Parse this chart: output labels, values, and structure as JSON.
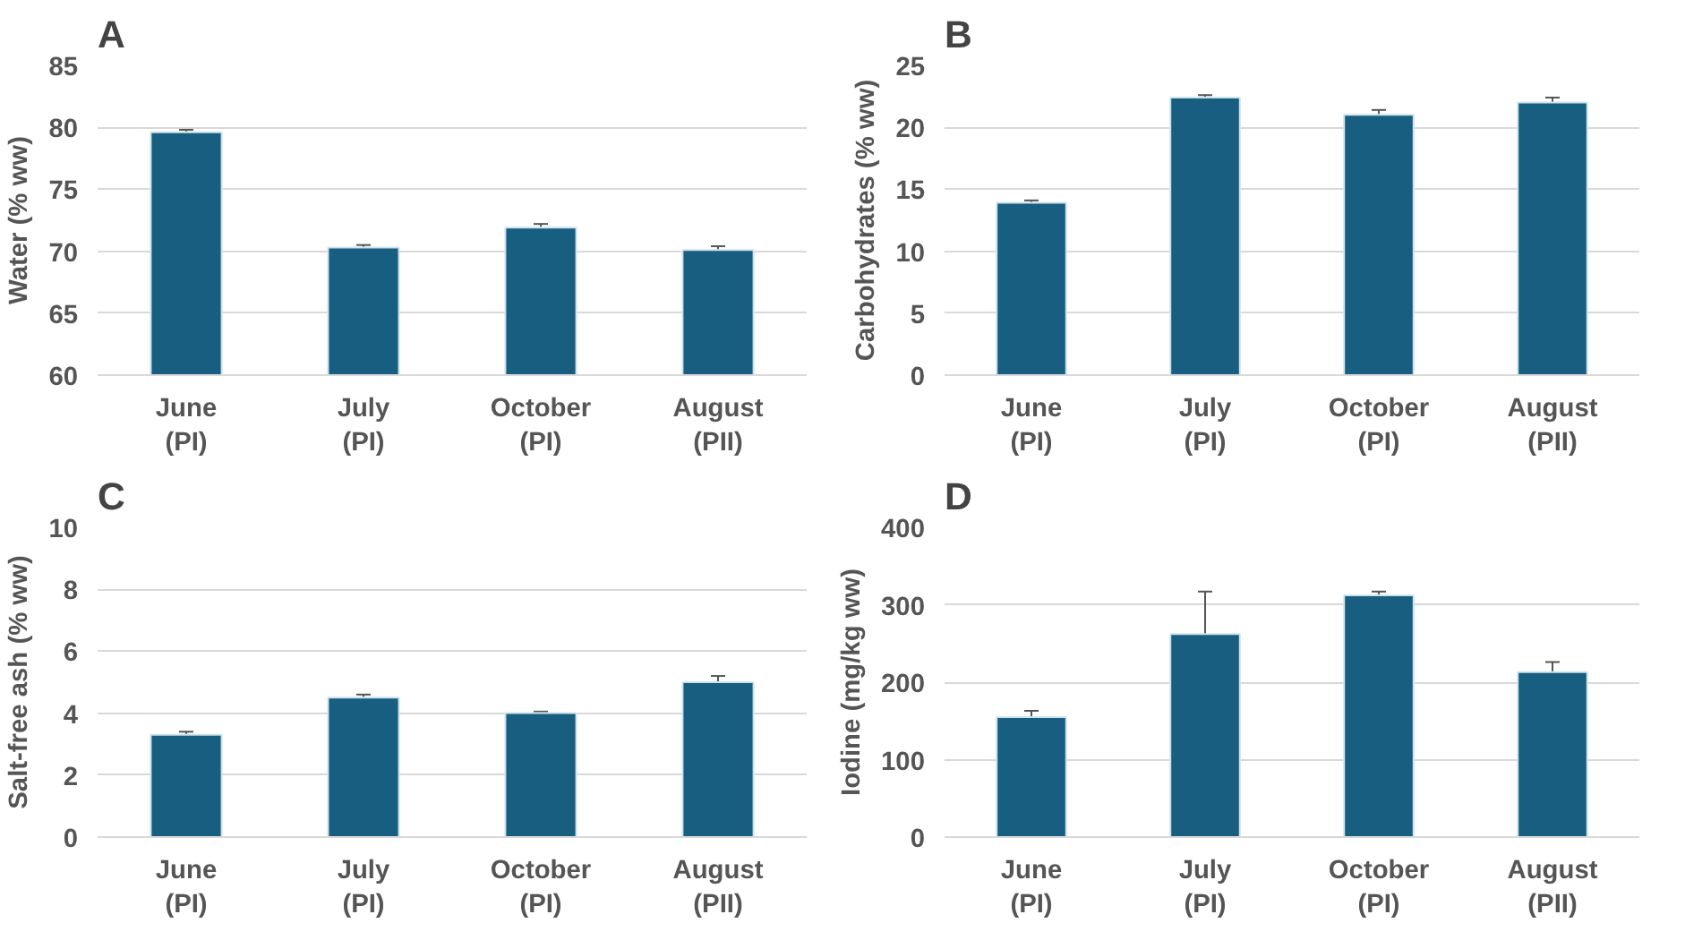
{
  "chart_data": [
    {
      "type": "bar",
      "title": "A",
      "ylabel": "Water (% ww)",
      "categories": [
        "June\n(PI)",
        "July\n(PI)",
        "October\n(PI)",
        "August\n(PII)"
      ],
      "values": [
        79.6,
        70.3,
        71.9,
        70.1
      ],
      "errors": [
        0.2,
        0.2,
        0.3,
        0.3
      ],
      "color": "#175e80",
      "ylim": [
        60,
        85
      ],
      "yticks": [
        60,
        65,
        70,
        75,
        80,
        85
      ],
      "grid": "y"
    },
    {
      "type": "bar",
      "title": "B",
      "ylabel": "Carbohydrates (% ww)",
      "categories": [
        "June\n(PI)",
        "July\n(PI)",
        "October\n(PI)",
        "August\n(PII)"
      ],
      "values": [
        13.9,
        22.4,
        21.0,
        22.0
      ],
      "errors": [
        0.2,
        0.2,
        0.4,
        0.4
      ],
      "color": "#175e80",
      "ylim": [
        0,
        25
      ],
      "yticks": [
        0,
        5,
        10,
        15,
        20,
        25
      ],
      "grid": "y"
    },
    {
      "type": "bar",
      "title": "C",
      "ylabel": "Salt-free ash (% ww)",
      "categories": [
        "June\n(PI)",
        "July\n(PI)",
        "October\n(PI)",
        "August\n(PII)"
      ],
      "values": [
        3.3,
        4.5,
        4.0,
        5.0
      ],
      "errors": [
        0.1,
        0.1,
        0.05,
        0.2
      ],
      "color": "#175e80",
      "ylim": [
        0,
        10
      ],
      "yticks": [
        0,
        2,
        4,
        6,
        8,
        10
      ],
      "grid": "y"
    },
    {
      "type": "bar",
      "title": "D",
      "ylabel": "Iodine (mg/kg ww)",
      "categories": [
        "June\n(PI)",
        "July\n(PI)",
        "October\n(PI)",
        "August\n(PII)"
      ],
      "values": [
        155,
        262,
        312,
        213
      ],
      "errors": [
        8,
        55,
        5,
        13
      ],
      "color": "#175e80",
      "ylim": [
        0,
        400
      ],
      "yticks": [
        0,
        100,
        200,
        300,
        400
      ],
      "grid": "y"
    }
  ]
}
